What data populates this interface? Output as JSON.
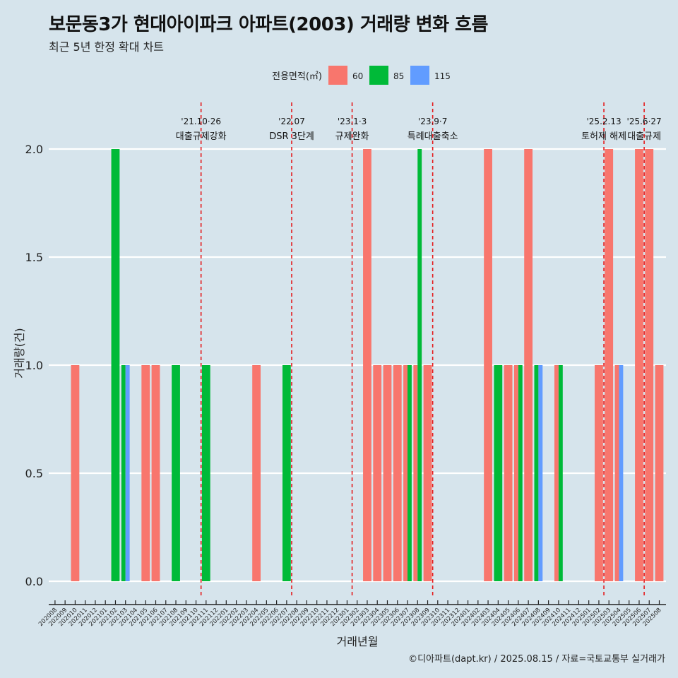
{
  "header": {
    "title": "보문동3가 현대아이파크 아파트(2003) 거래량 변화 흐름",
    "subtitle": "최근 5년 한정 확대 차트",
    "caption": "©디아파트(dapt.kr) / 2025.08.15 / 자료=국토교통부 실거래가"
  },
  "chart_data": {
    "type": "bar",
    "xlabel": "거래년월",
    "ylabel": "거래량(건)",
    "ylim": [
      0,
      2.2
    ],
    "yticks": [
      0.0,
      0.5,
      1.0,
      1.5,
      2.0
    ],
    "ytick_labels": [
      "0.0",
      "0.5",
      "1.0",
      "1.5",
      "2.0"
    ],
    "grid": true,
    "legend_title": "전용면적(㎡)",
    "legend_position": "top",
    "categories": [
      "202008",
      "202009",
      "202010",
      "202011",
      "202012",
      "202101",
      "202102",
      "202103",
      "202104",
      "202105",
      "202106",
      "202107",
      "202108",
      "202109",
      "202110",
      "202111",
      "202112",
      "202201",
      "202202",
      "202203",
      "202204",
      "202205",
      "202206",
      "202207",
      "202208",
      "202209",
      "202210",
      "202211",
      "202212",
      "202301",
      "202302",
      "202303",
      "202304",
      "202305",
      "202306",
      "202307",
      "202308",
      "202309",
      "202310",
      "202311",
      "202312",
      "202401",
      "202402",
      "202403",
      "202404",
      "202405",
      "202406",
      "202407",
      "202408",
      "202409",
      "202410",
      "202411",
      "202412",
      "202501",
      "202502",
      "202503",
      "202504",
      "202505",
      "202506",
      "202507",
      "202508"
    ],
    "series": [
      {
        "name": "60",
        "color": "#f8766d",
        "values": [
          0,
          0,
          1,
          0,
          0,
          0,
          0,
          0,
          0,
          1,
          1,
          0,
          0,
          0,
          0,
          0,
          0,
          0,
          0,
          0,
          1,
          0,
          0,
          0,
          0,
          0,
          0,
          0,
          0,
          0,
          0,
          2,
          1,
          1,
          1,
          1,
          1,
          1,
          0,
          0,
          0,
          0,
          0,
          2,
          0,
          1,
          1,
          2,
          0,
          0,
          1,
          0,
          0,
          0,
          1,
          2,
          1,
          0,
          2,
          2,
          1
        ]
      },
      {
        "name": "85",
        "color": "#00ba38",
        "values": [
          0,
          0,
          0,
          0,
          0,
          0,
          2,
          1,
          0,
          0,
          0,
          0,
          1,
          0,
          0,
          1,
          0,
          0,
          0,
          0,
          0,
          0,
          0,
          1,
          0,
          0,
          0,
          0,
          0,
          0,
          0,
          0,
          0,
          0,
          0,
          1,
          2,
          0,
          0,
          0,
          0,
          0,
          0,
          0,
          1,
          0,
          1,
          0,
          1,
          0,
          1,
          0,
          0,
          0,
          0,
          0,
          0,
          0,
          0,
          0,
          0
        ]
      },
      {
        "name": "115",
        "color": "#619cff",
        "values": [
          0,
          0,
          0,
          0,
          0,
          0,
          0,
          1,
          0,
          0,
          0,
          0,
          0,
          0,
          0,
          0,
          0,
          0,
          0,
          0,
          0,
          0,
          0,
          0,
          0,
          0,
          0,
          0,
          0,
          0,
          0,
          0,
          0,
          0,
          0,
          0,
          0,
          0,
          0,
          0,
          0,
          0,
          0,
          0,
          0,
          0,
          0,
          0,
          1,
          0,
          0,
          0,
          0,
          0,
          0,
          0,
          1,
          0,
          0,
          0,
          0
        ]
      }
    ],
    "annotations": [
      {
        "x": 14.5,
        "date": "'21.10·26",
        "label": "대출규제강화"
      },
      {
        "x": 23.5,
        "date": "'22.07",
        "label": "DSR 3단계"
      },
      {
        "x": 29.5,
        "date": "'23.1·3",
        "label": "규제완화"
      },
      {
        "x": 37.5,
        "date": "'23.9·7",
        "label": "특례대출축소"
      },
      {
        "x": 54.5,
        "date": "'25.2.13",
        "label": "토허제 해제"
      },
      {
        "x": 58.5,
        "date": "'25.6·27",
        "label": "대출규제"
      }
    ],
    "annotation_color": "#e41a1c"
  }
}
